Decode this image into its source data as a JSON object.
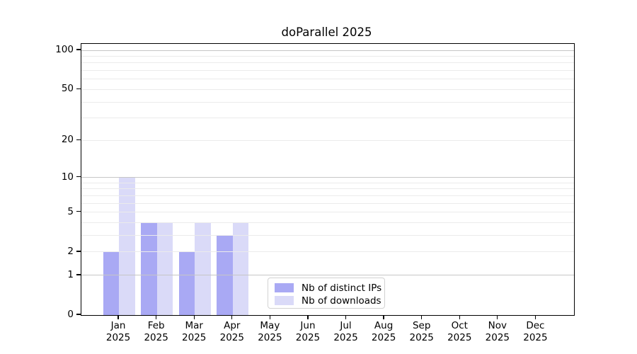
{
  "chart_data": {
    "type": "bar",
    "title": "doParallel 2025",
    "categories": [
      "Jan",
      "Feb",
      "Mar",
      "Apr",
      "May",
      "Jun",
      "Jul",
      "Aug",
      "Sep",
      "Oct",
      "Nov",
      "Dec"
    ],
    "x_year": "2025",
    "series": [
      {
        "name": "Nb of distinct IPs",
        "color": "#a9a9f4",
        "values": [
          2,
          4,
          2,
          3,
          0,
          0,
          0,
          0,
          0,
          0,
          0,
          0
        ]
      },
      {
        "name": "Nb of downloads",
        "color": "#dadaf8",
        "values": [
          10,
          4,
          4,
          4,
          0,
          0,
          0,
          0,
          0,
          0,
          0,
          0
        ]
      }
    ],
    "y_scale": "log1p",
    "y_ticks": [
      0,
      1,
      2,
      5,
      10,
      20,
      50,
      100
    ],
    "y_axis_max": 112,
    "grid_major": [
      1,
      10,
      100
    ],
    "grid_minor": [
      2,
      3,
      4,
      5,
      6,
      7,
      8,
      9,
      20,
      30,
      40,
      50,
      60,
      70,
      80,
      90
    ],
    "legend": {
      "position": "inside-bottom-center"
    },
    "background": "#ffffff"
  }
}
